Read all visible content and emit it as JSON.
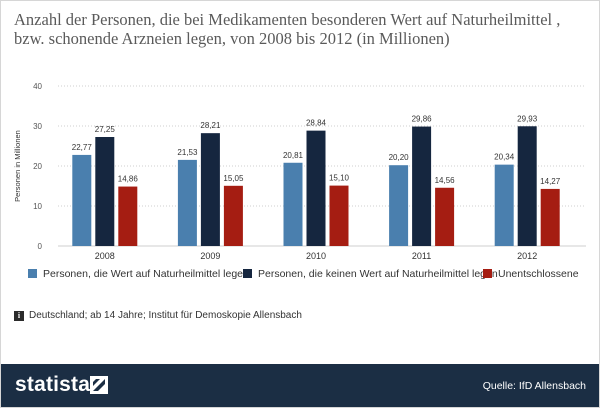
{
  "title": "Anzahl der Personen, die bei Medikamenten besonderen Wert auf Naturheilmittel , bzw. schonende Arzneien legen, von 2008 bis 2012 (in Millionen)",
  "chart_data": {
    "type": "bar",
    "title": "Anzahl der Personen, die bei Medikamenten besonderen Wert auf Naturheilmittel , bzw. schonende Arzneien legen, von 2008 bis 2012 (in Millionen)",
    "xlabel": "",
    "ylabel": "Personen in Millionen",
    "ylim": [
      0,
      40
    ],
    "yticks": [
      0,
      10,
      20,
      30,
      40
    ],
    "grid": true,
    "legend_position": "bottom",
    "categories": [
      "2008",
      "2009",
      "2010",
      "2011",
      "2012"
    ],
    "series": [
      {
        "name": "Personen, die Wert auf Naturheilmittel legen",
        "color": "#4a7fae",
        "values": [
          22.77,
          21.53,
          20.81,
          20.2,
          20.34
        ],
        "labels": [
          "22,77",
          "21,53",
          "20,81",
          "20,20",
          "20,34"
        ]
      },
      {
        "name": "Personen, die keinen Wert auf Naturheilmittel legen",
        "color": "#15263f",
        "values": [
          27.25,
          28.21,
          28.84,
          29.86,
          29.93
        ],
        "labels": [
          "27,25",
          "28,21",
          "28,84",
          "29,86",
          "29,93"
        ]
      },
      {
        "name": "Unentschlossene",
        "color": "#a51d12",
        "values": [
          14.86,
          15.05,
          15.1,
          14.56,
          14.27
        ],
        "labels": [
          "14,86",
          "15,05",
          "15,10",
          "14,56",
          "14,27"
        ]
      }
    ]
  },
  "note": {
    "icon": "info-icon",
    "icon_glyph": "i",
    "text": "Deutschland; ab 14 Jahre; Institut für Demoskopie Allensbach"
  },
  "footer": {
    "logo": "statista",
    "source": "Quelle: IfD Allensbach",
    "background": "#1b2e44"
  }
}
